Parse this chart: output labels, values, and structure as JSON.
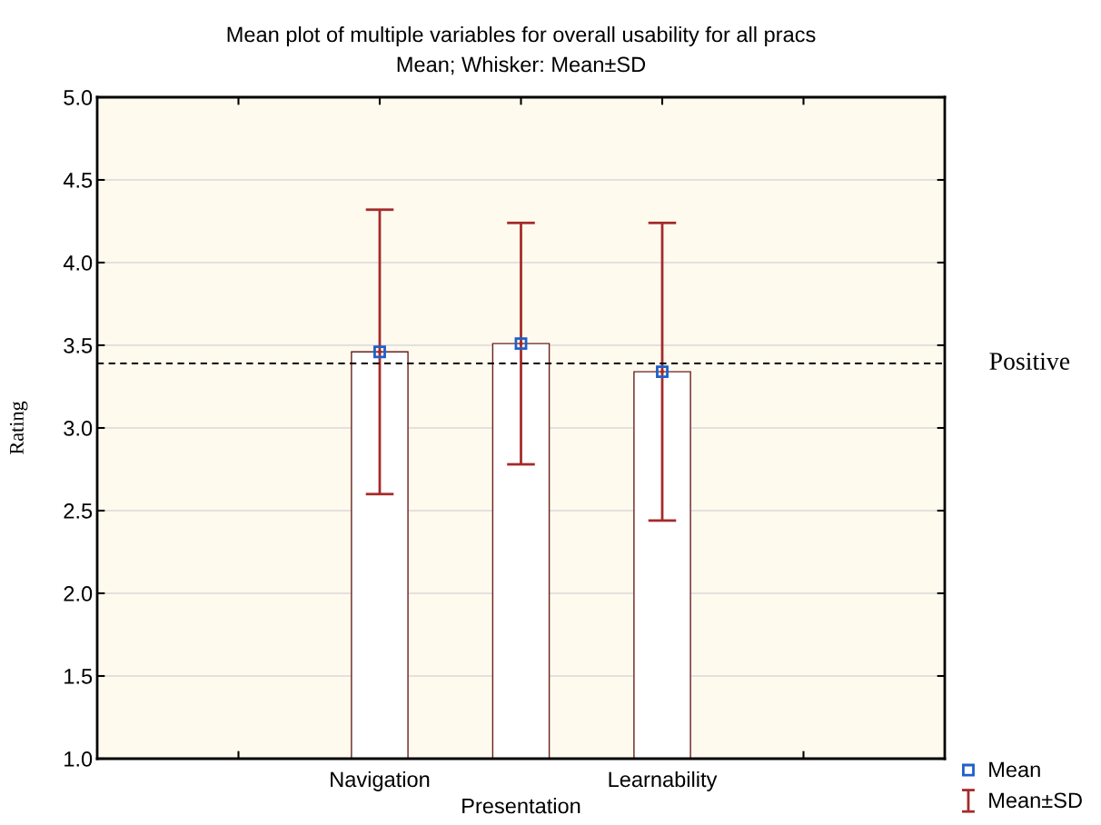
{
  "chart_data": {
    "type": "bar",
    "title": "Mean plot of multiple variables for overall usability for all pracs",
    "subtitle": "Mean; Whisker: Mean±SD",
    "ylabel": "Rating",
    "categories": [
      null,
      "Navigation",
      "Presentation",
      "Learnability",
      null
    ],
    "series": [
      {
        "color": "#ffffff",
        "values": [
          null,
          3.46,
          3.51,
          3.34,
          null
        ]
      },
      {
        "type": "scatter",
        "name": "Mean",
        "color": "#1f5fc8",
        "marker": "square",
        "values": [
          null,
          3.46,
          3.51,
          3.34,
          null
        ]
      },
      {
        "type": "scatter",
        "name": "Mean±SD",
        "color": "#a52a2a",
        "marker": "none",
        "values": [
          null,
          3.46,
          3.51,
          3.34,
          null
        ],
        "errors": [
          null,
          0.86,
          0.73,
          0.9,
          null
        ]
      }
    ],
    "ylim": [
      1.0,
      5.0
    ],
    "yticks": [
      {
        "value": 1.0,
        "label": "1.0"
      },
      {
        "value": 1.5,
        "label": "1.5"
      },
      {
        "value": 2.0,
        "label": "2.0"
      },
      {
        "value": 2.5,
        "label": "2.5"
      },
      {
        "value": 3.0,
        "label": "3.0"
      },
      {
        "value": 3.5,
        "label": "3.5"
      },
      {
        "value": 4.0,
        "label": "4.0"
      },
      {
        "value": 4.5,
        "label": "4.5"
      },
      {
        "value": 5.0,
        "label": "5.0"
      }
    ],
    "grid": "y",
    "legend": "bottom right",
    "ref_lines": [
      {
        "axis": "y",
        "value": 3.39,
        "label": "Positive",
        "color": "#000000",
        "line_style": "dashed"
      }
    ]
  }
}
